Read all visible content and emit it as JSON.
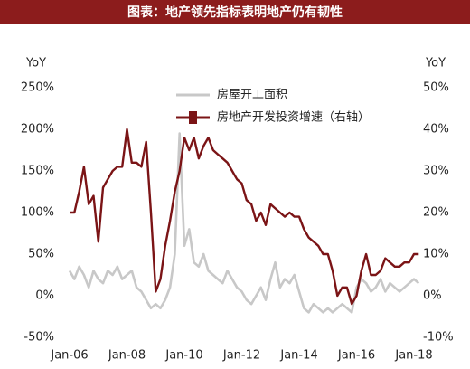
{
  "chart_data": {
    "type": "line",
    "title": "图表：地产领先指标表明地产仍有韧性",
    "y_label": "YoY",
    "y2_label": "YoY",
    "categories": [
      "Jan-06",
      null,
      null,
      null,
      null,
      null,
      null,
      null,
      null,
      null,
      null,
      null,
      "Jan-08",
      null,
      null,
      null,
      null,
      null,
      null,
      null,
      null,
      null,
      null,
      null,
      "Jan-10",
      null,
      null,
      null,
      null,
      null,
      null,
      null,
      null,
      null,
      null,
      null,
      "Jan-12",
      null,
      null,
      null,
      null,
      null,
      null,
      null,
      null,
      null,
      null,
      null,
      "Jan-14",
      null,
      null,
      null,
      null,
      null,
      null,
      null,
      null,
      null,
      null,
      null,
      "Jan-16",
      null,
      null,
      null,
      null,
      null,
      null,
      null,
      null,
      null,
      null,
      null,
      "Jan-18",
      null
    ],
    "series": [
      {
        "name": "房屋开工面积",
        "color": "#c8c8c8",
        "axis": "y",
        "values": [
          30,
          20,
          35,
          25,
          10,
          30,
          20,
          15,
          30,
          25,
          35,
          20,
          25,
          30,
          10,
          5,
          -5,
          -15,
          -10,
          -15,
          -5,
          10,
          50,
          195,
          60,
          80,
          40,
          35,
          50,
          30,
          25,
          20,
          15,
          30,
          20,
          10,
          5,
          -5,
          -10,
          0,
          10,
          -5,
          20,
          40,
          10,
          20,
          15,
          25,
          5,
          -15,
          -20,
          -10,
          -15,
          -20,
          -15,
          -20,
          -15,
          -10,
          -15,
          -20,
          10,
          20,
          15,
          5,
          10,
          20,
          5,
          15,
          10,
          5,
          10,
          15,
          20,
          15
        ]
      },
      {
        "name": "房地产开发投资增速（右轴）",
        "color": "#7b1416",
        "axis": "y2",
        "values": [
          20,
          20,
          25,
          31,
          22,
          24,
          13,
          26,
          28,
          30,
          31,
          31,
          40,
          32,
          32,
          31,
          37,
          20,
          1,
          4,
          12,
          18,
          25,
          30,
          38,
          35,
          38,
          33,
          36,
          38,
          35,
          34,
          33,
          32,
          30,
          28,
          27,
          23,
          22,
          18,
          20,
          17,
          22,
          21,
          20,
          19,
          20,
          19,
          19,
          16,
          14,
          13,
          12,
          10,
          10,
          6,
          0,
          2,
          2,
          -2,
          0,
          6,
          10,
          5,
          5,
          6,
          9,
          8,
          7,
          7,
          8,
          8,
          10,
          10
        ]
      }
    ],
    "ylim": [
      -50,
      250
    ],
    "yticks": [
      {
        "value": -50,
        "label": "-50%"
      },
      {
        "value": 0,
        "label": "0%"
      },
      {
        "value": 50,
        "label": "50%"
      },
      {
        "value": 100,
        "label": "100%"
      },
      {
        "value": 150,
        "label": "150%"
      },
      {
        "value": 200,
        "label": "200%"
      },
      {
        "value": 250,
        "label": "250%"
      }
    ],
    "y2lim": [
      -10,
      50
    ],
    "y2ticks": [
      {
        "value": -10,
        "label": "-10%"
      },
      {
        "value": 0,
        "label": "0%"
      },
      {
        "value": 10,
        "label": "10%"
      },
      {
        "value": 20,
        "label": "20%"
      },
      {
        "value": 30,
        "label": "30%"
      },
      {
        "value": 40,
        "label": "40%"
      },
      {
        "value": 50,
        "label": "50%"
      }
    ],
    "title_background": "#8c1c1c"
  }
}
